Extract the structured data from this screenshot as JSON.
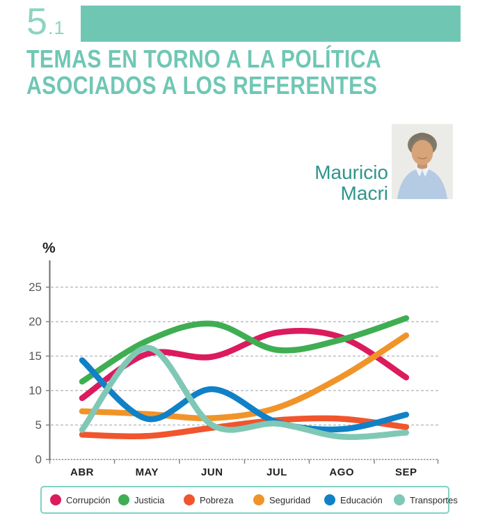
{
  "section": {
    "number": "5",
    "sub": ".1"
  },
  "title": {
    "line1": "TEMAS EN TORNO A LA POLÍTICA",
    "line2": "ASOCIADOS A LOS REFERENTES"
  },
  "referent": {
    "first_name": "Mauricio",
    "last_name": "Macri"
  },
  "chart_data": {
    "type": "line",
    "ylabel": "%",
    "categories": [
      "ABR",
      "MAY",
      "JUN",
      "JUL",
      "AGO",
      "SEP"
    ],
    "y_ticks": [
      0,
      5,
      10,
      15,
      20,
      25
    ],
    "ylim": [
      0,
      27.5
    ],
    "grid": "horizontal-dashed",
    "legend_position": "bottom",
    "series": [
      {
        "name": "Corrupción",
        "color": "#DC1A5E",
        "values": [
          8.9,
          15.3,
          14.9,
          18.4,
          17.7,
          11.9
        ]
      },
      {
        "name": "Justicia",
        "color": "#3FAE52",
        "values": [
          11.3,
          17.2,
          19.7,
          15.9,
          17.4,
          20.5
        ]
      },
      {
        "name": "Pobreza",
        "color": "#F1552D",
        "values": [
          3.6,
          3.4,
          4.6,
          5.7,
          5.9,
          4.7
        ]
      },
      {
        "name": "Seguridad",
        "color": "#F09429",
        "values": [
          7.0,
          6.6,
          6.0,
          7.5,
          12.0,
          18.0
        ]
      },
      {
        "name": "Educación",
        "color": "#1081C6",
        "values": [
          14.4,
          5.9,
          10.2,
          5.4,
          4.4,
          6.5
        ]
      },
      {
        "name": "Transportes",
        "color": "#80C8B6",
        "values": [
          4.3,
          16.2,
          5.0,
          5.2,
          3.3,
          3.9
        ]
      }
    ]
  },
  "theme": {
    "accent_teal": "#6FC7B3",
    "title_teal": "#6FC7B4",
    "section_teal": "#8ED3C3",
    "name_teal": "#2F958C",
    "legend_border": "#7FD1C1"
  }
}
